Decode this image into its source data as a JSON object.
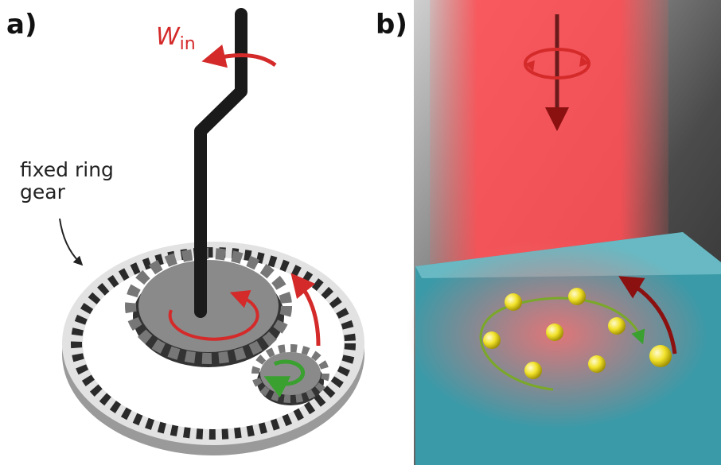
{
  "panel_a": {
    "label": "a)",
    "input_work": {
      "symbol": "W",
      "subscript": "in"
    },
    "ring_gear_label": [
      "fixed ring",
      "gear"
    ]
  },
  "panel_b": {
    "label": "b)"
  }
}
